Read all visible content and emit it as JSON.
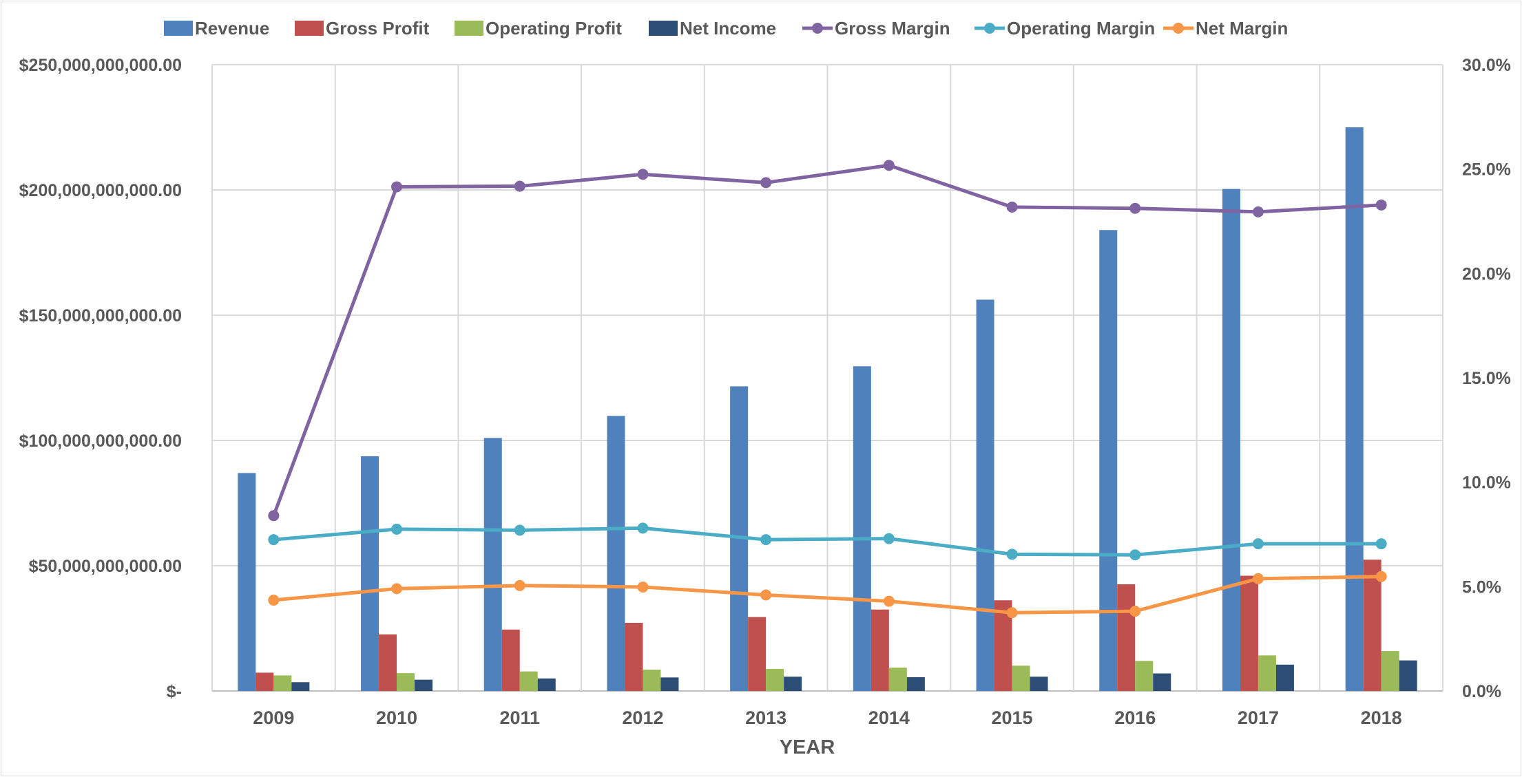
{
  "chart_data": {
    "type": "bar",
    "title": "",
    "xlabel": "YEAR",
    "ylabel": "",
    "ylabel_right": "",
    "categories": [
      "2009",
      "2010",
      "2011",
      "2012",
      "2013",
      "2014",
      "2015",
      "2016",
      "2017",
      "2018"
    ],
    "ylim": [
      0,
      250000000000
    ],
    "ylim_right": [
      0,
      0.3
    ],
    "y_ticks": [
      {
        "value": 0,
        "label": "$-"
      },
      {
        "value": 50000000000,
        "label": "$50,000,000,000.00"
      },
      {
        "value": 100000000000,
        "label": "$100,000,000,000.00"
      },
      {
        "value": 150000000000,
        "label": "$150,000,000,000.00"
      },
      {
        "value": 200000000000,
        "label": "$200,000,000,000.00"
      },
      {
        "value": 250000000000,
        "label": "$250,000,000,000.00"
      }
    ],
    "y_ticks_right": [
      {
        "value": 0.0,
        "label": "0.0%"
      },
      {
        "value": 0.05,
        "label": "5.0%"
      },
      {
        "value": 0.1,
        "label": "10.0%"
      },
      {
        "value": 0.15,
        "label": "15.0%"
      },
      {
        "value": 0.2,
        "label": "20.0%"
      },
      {
        "value": 0.25,
        "label": "25.0%"
      },
      {
        "value": 0.3,
        "label": "30.0%"
      }
    ],
    "grid": true,
    "legend_position": "top",
    "series": [
      {
        "name": "Revenue",
        "kind": "bar",
        "axis": "left",
        "color": "#4f81bd",
        "values": [
          87000000000,
          93700000000,
          101000000000,
          109800000000,
          121600000000,
          129600000000,
          156200000000,
          184000000000,
          200400000000,
          225000000000
        ]
      },
      {
        "name": "Gross Profit",
        "kind": "bar",
        "axis": "left",
        "color": "#c0504d",
        "values": [
          7300000000,
          22600000000,
          24500000000,
          27200000000,
          29500000000,
          32500000000,
          36200000000,
          42600000000,
          46000000000,
          52400000000
        ]
      },
      {
        "name": "Operating Profit",
        "kind": "bar",
        "axis": "left",
        "color": "#9bbb59",
        "values": [
          6200000000,
          7100000000,
          7800000000,
          8500000000,
          8800000000,
          9300000000,
          10100000000,
          12000000000,
          14200000000,
          15900000000
        ]
      },
      {
        "name": "Net Income",
        "kind": "bar",
        "axis": "left",
        "color": "#2c4d75",
        "values": [
          3500000000,
          4500000000,
          5000000000,
          5400000000,
          5700000000,
          5500000000,
          5700000000,
          7000000000,
          10500000000,
          12200000000
        ]
      },
      {
        "name": "Gross Margin",
        "kind": "line",
        "axis": "right",
        "color": "#8064a2",
        "values": [
          0.084,
          0.2415,
          0.2418,
          0.2475,
          0.2435,
          0.2518,
          0.2318,
          0.2312,
          0.2295,
          0.2328
        ]
      },
      {
        "name": "Operating Margin",
        "kind": "line",
        "axis": "right",
        "color": "#4bacc6",
        "values": [
          0.0725,
          0.0775,
          0.077,
          0.078,
          0.0725,
          0.073,
          0.0655,
          0.0652,
          0.0705,
          0.0705
        ]
      },
      {
        "name": "Net Margin",
        "kind": "line",
        "axis": "right",
        "color": "#f79646",
        "values": [
          0.0435,
          0.049,
          0.0505,
          0.0498,
          0.046,
          0.043,
          0.0375,
          0.0382,
          0.0538,
          0.0548
        ]
      }
    ]
  }
}
